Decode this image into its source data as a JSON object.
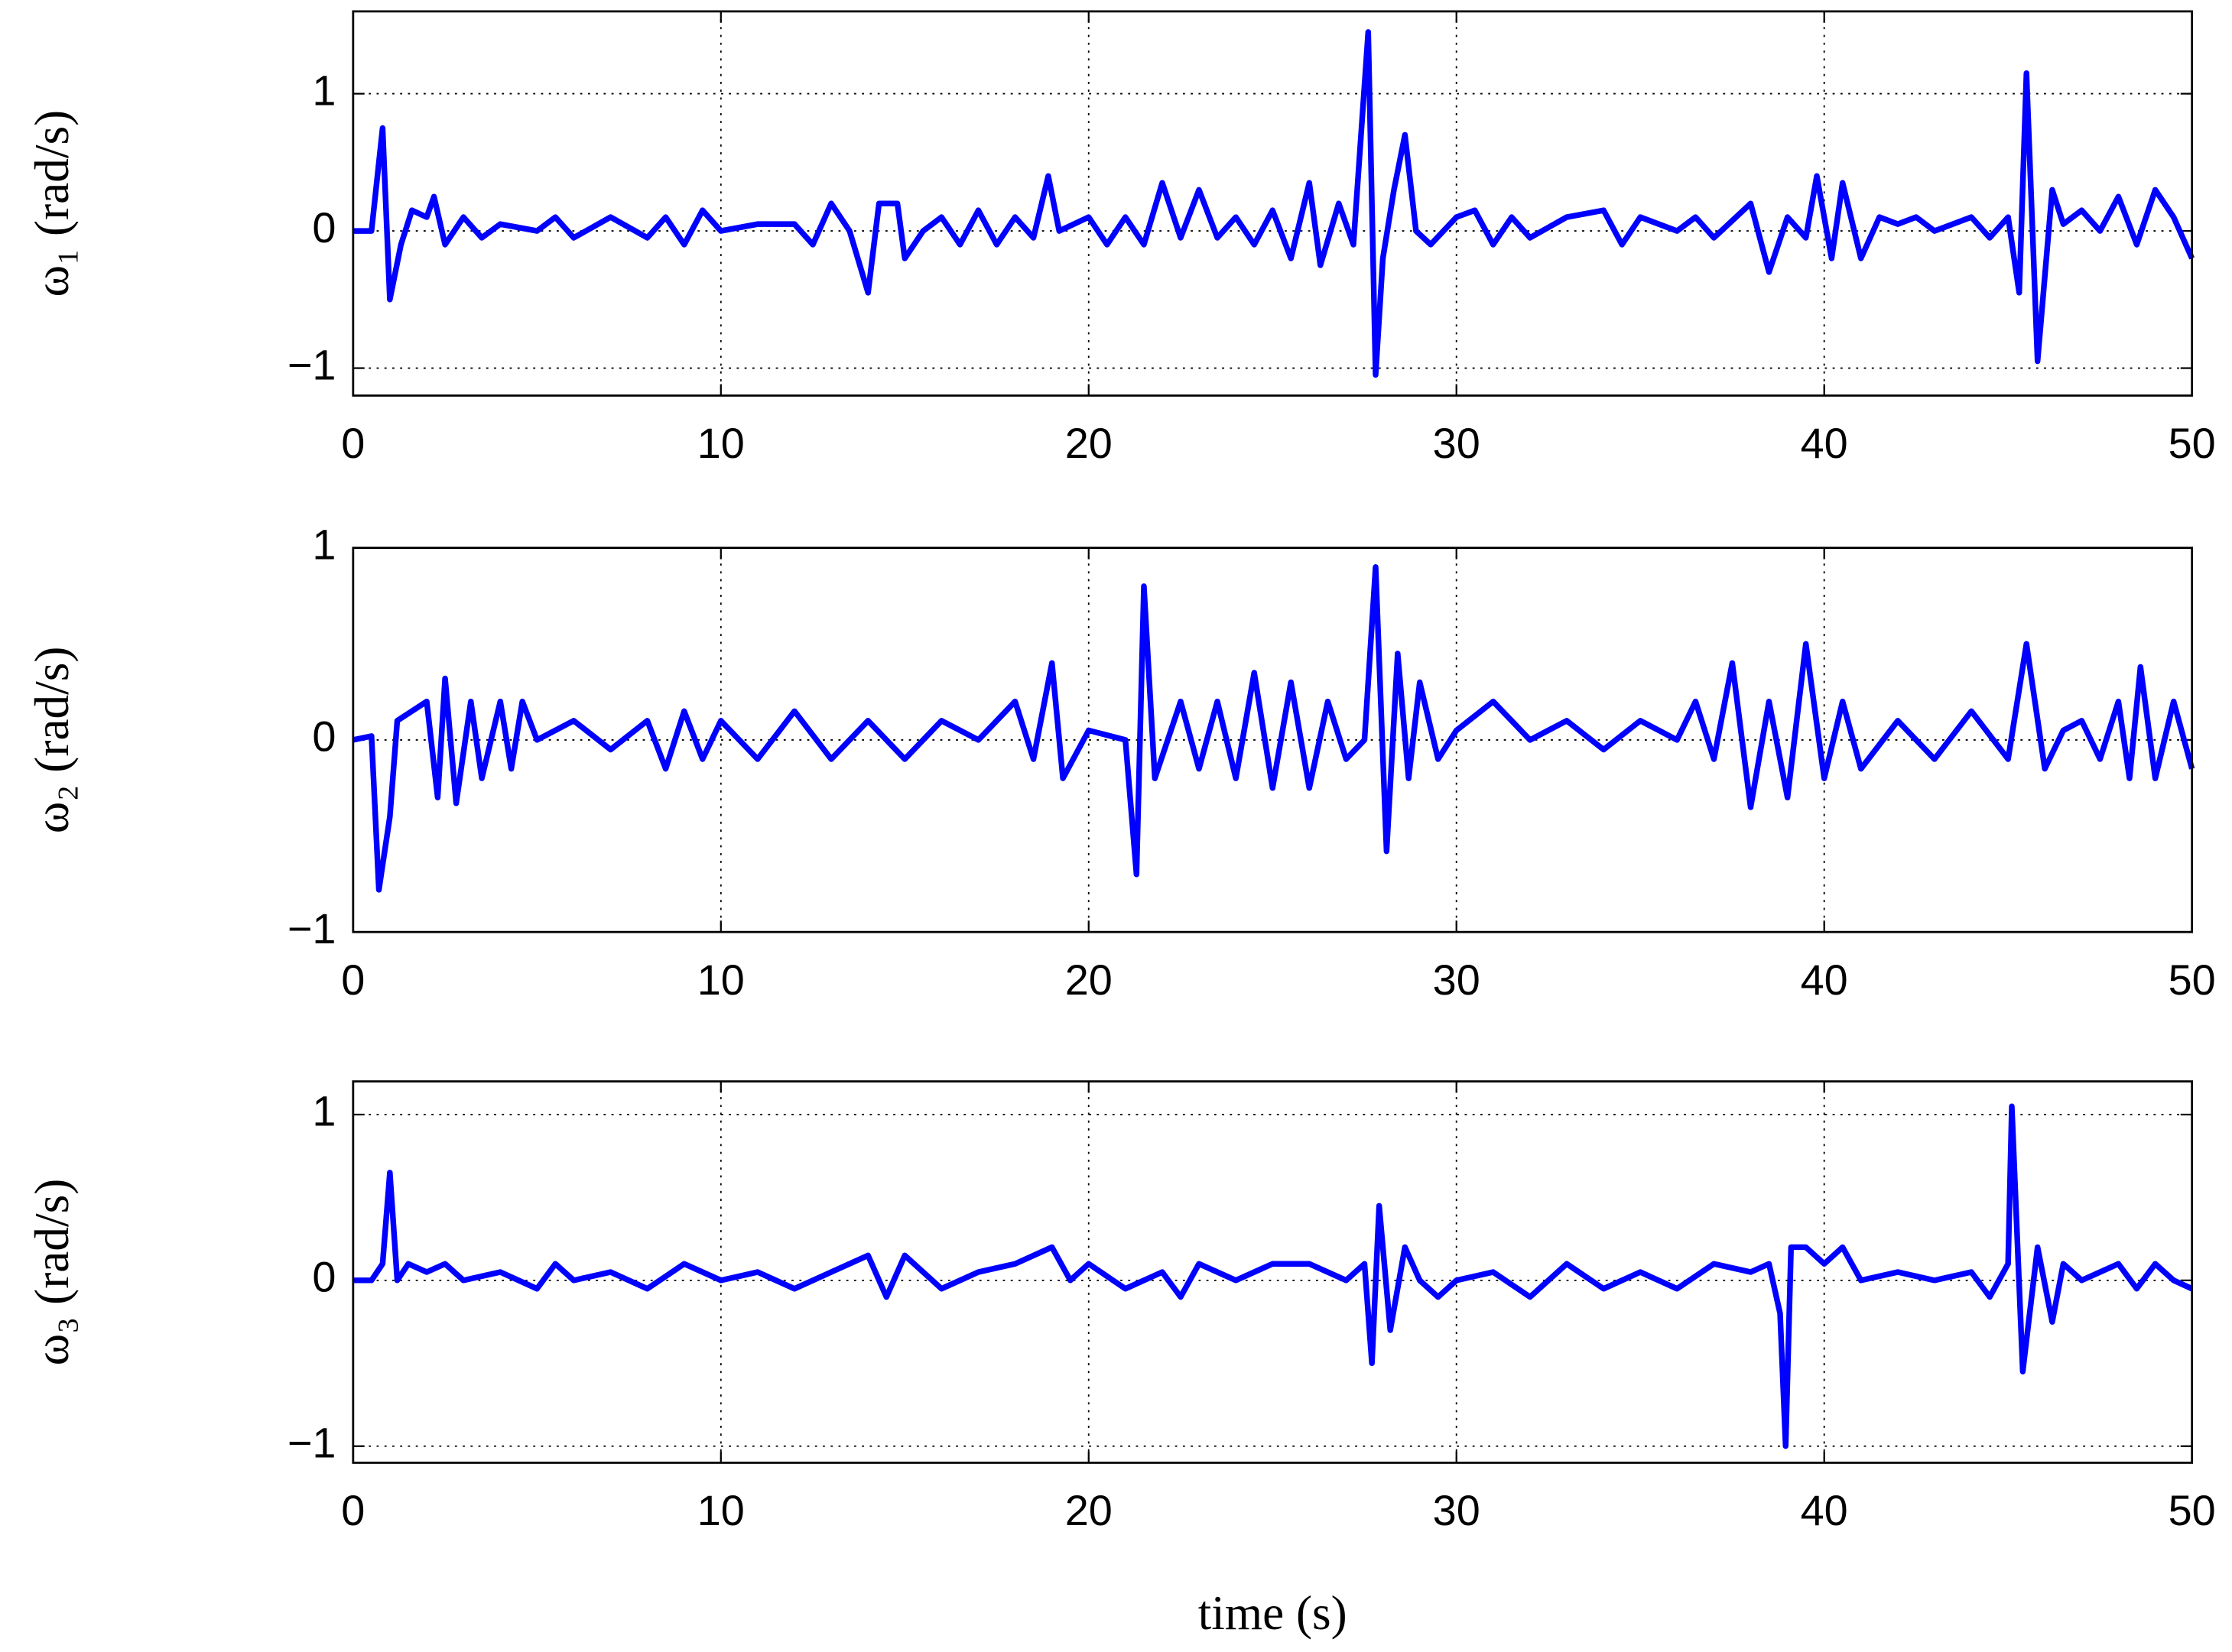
{
  "chart_data": [
    {
      "type": "line",
      "ylabel": "ω₁ (rad/s)",
      "xlim": [
        0,
        50
      ],
      "xticks": [
        0,
        10,
        20,
        30,
        40,
        50
      ],
      "ylim": [
        -1.2,
        1.6
      ],
      "yticks": [
        {
          "value": -1,
          "label": "−1"
        },
        0,
        1
      ],
      "grid": true,
      "x": [
        0,
        0.5,
        0.8,
        1.0,
        1.3,
        1.6,
        2.0,
        2.2,
        2.5,
        3,
        3.5,
        4,
        5,
        5.5,
        6,
        7,
        8,
        8.5,
        9,
        9.5,
        10,
        11,
        12,
        12.5,
        13,
        13.5,
        14,
        14.3,
        14.8,
        15,
        15.5,
        16,
        16.5,
        17,
        17.5,
        18,
        18.5,
        18.9,
        19.2,
        20,
        20.5,
        21,
        21.5,
        22,
        22.5,
        23,
        23.5,
        24,
        24.5,
        25,
        25.5,
        26,
        26.3,
        26.8,
        27.2,
        27.6,
        27.8,
        28.0,
        28.3,
        28.6,
        28.9,
        29.3,
        30,
        30.5,
        31,
        31.5,
        32,
        33,
        34,
        34.5,
        35,
        36,
        36.5,
        37,
        38,
        38.5,
        39,
        39.5,
        39.8,
        40.2,
        40.5,
        41,
        41.5,
        42,
        42.5,
        43,
        43.5,
        44,
        44.5,
        45,
        45.3,
        45.5,
        45.8,
        46.2,
        46.5,
        47,
        47.5,
        48,
        48.5,
        49,
        49.5,
        50
      ],
      "series": [
        {
          "name": "ω₁",
          "color": "#0000ff",
          "values": [
            0,
            0.0,
            0.75,
            -0.5,
            -0.1,
            0.15,
            0.1,
            0.25,
            -0.1,
            0.1,
            -0.05,
            0.05,
            0.0,
            0.1,
            -0.05,
            0.1,
            -0.05,
            0.1,
            -0.1,
            0.15,
            0.0,
            0.05,
            0.05,
            -0.1,
            0.2,
            0.0,
            -0.45,
            0.2,
            0.2,
            -0.2,
            0.0,
            0.1,
            -0.1,
            0.15,
            -0.1,
            0.1,
            -0.05,
            0.4,
            0.0,
            0.1,
            -0.1,
            0.1,
            -0.1,
            0.35,
            -0.05,
            0.3,
            -0.05,
            0.1,
            -0.1,
            0.15,
            -0.2,
            0.35,
            -0.25,
            0.2,
            -0.1,
            1.45,
            -1.05,
            -0.2,
            0.3,
            0.7,
            0.0,
            -0.1,
            0.1,
            0.15,
            -0.1,
            0.1,
            -0.05,
            0.1,
            0.15,
            -0.1,
            0.1,
            0.0,
            0.1,
            -0.05,
            0.2,
            -0.3,
            0.1,
            -0.05,
            0.4,
            -0.2,
            0.35,
            -0.2,
            0.1,
            0.05,
            0.1,
            0.0,
            0.05,
            0.1,
            -0.05,
            0.1,
            -0.45,
            1.15,
            -0.95,
            0.3,
            0.05,
            0.15,
            0.0,
            0.25,
            -0.1,
            0.3,
            0.1,
            -0.2
          ]
        }
      ]
    },
    {
      "type": "line",
      "ylabel": "ω₂ (rad/s)",
      "xlim": [
        0,
        50
      ],
      "xticks": [
        0,
        10,
        20,
        30,
        40,
        50
      ],
      "ylim": [
        -1,
        1
      ],
      "yticks": [
        {
          "value": -1,
          "label": "−1"
        },
        0,
        1
      ],
      "grid": true,
      "x": [
        0,
        0.5,
        0.7,
        1.0,
        1.2,
        1.6,
        2.0,
        2.3,
        2.5,
        2.8,
        3.2,
        3.5,
        4,
        4.3,
        4.6,
        5,
        6,
        7,
        8,
        8.5,
        9,
        9.5,
        10,
        11,
        12,
        13,
        14,
        15,
        16,
        17,
        18,
        18.5,
        19,
        19.3,
        20,
        21,
        21.3,
        21.5,
        21.8,
        22.5,
        23,
        23.5,
        24,
        24.5,
        25,
        25.5,
        26,
        26.5,
        27,
        27.5,
        27.8,
        28.1,
        28.4,
        28.7,
        29,
        29.5,
        30,
        31,
        32,
        33,
        34,
        35,
        36,
        36.5,
        37,
        37.5,
        38,
        38.5,
        39,
        39.5,
        40,
        40.5,
        41,
        42,
        43,
        44,
        45,
        45.5,
        46,
        46.5,
        47,
        47.5,
        48,
        48.3,
        48.6,
        49,
        49.5,
        50
      ],
      "series": [
        {
          "name": "ω₂",
          "color": "#0000ff",
          "values": [
            0,
            0.02,
            -0.78,
            -0.4,
            0.1,
            0.15,
            0.2,
            -0.3,
            0.32,
            -0.33,
            0.2,
            -0.2,
            0.2,
            -0.15,
            0.2,
            0.0,
            0.1,
            -0.05,
            0.1,
            -0.15,
            0.15,
            -0.1,
            0.1,
            -0.1,
            0.15,
            -0.1,
            0.1,
            -0.1,
            0.1,
            0.0,
            0.2,
            -0.1,
            0.4,
            -0.2,
            0.05,
            0.0,
            -0.7,
            0.8,
            -0.2,
            0.2,
            -0.15,
            0.2,
            -0.2,
            0.35,
            -0.25,
            0.3,
            -0.25,
            0.2,
            -0.1,
            0.0,
            0.9,
            -0.58,
            0.45,
            -0.2,
            0.3,
            -0.1,
            0.05,
            0.2,
            0.0,
            0.1,
            -0.05,
            0.1,
            0.0,
            0.2,
            -0.1,
            0.4,
            -0.35,
            0.2,
            -0.3,
            0.5,
            -0.2,
            0.2,
            -0.15,
            0.1,
            -0.1,
            0.15,
            -0.1,
            0.5,
            -0.15,
            0.05,
            0.1,
            -0.1,
            0.2,
            -0.2,
            0.38,
            -0.2,
            0.2,
            -0.15
          ]
        }
      ]
    },
    {
      "type": "line",
      "ylabel": "ω₃ (rad/s)",
      "xlabel": "time (s)",
      "xlim": [
        0,
        50
      ],
      "xticks": [
        0,
        10,
        20,
        30,
        40,
        50
      ],
      "ylim": [
        -1.1,
        1.2
      ],
      "yticks": [
        {
          "value": -1,
          "label": "−1"
        },
        0,
        1
      ],
      "grid": true,
      "x": [
        0,
        0.5,
        0.8,
        1.0,
        1.2,
        1.5,
        2,
        2.5,
        3,
        4,
        5,
        5.5,
        6,
        7,
        8,
        9,
        10,
        11,
        12,
        13,
        14,
        14.5,
        15,
        16,
        17,
        18,
        19,
        19.5,
        20,
        21,
        22,
        22.5,
        23,
        24,
        25,
        26,
        27,
        27.5,
        27.7,
        27.9,
        28.2,
        28.6,
        29,
        29.5,
        30,
        31,
        32,
        33,
        34,
        35,
        36,
        37,
        38,
        38.5,
        38.8,
        38.95,
        39.1,
        39.5,
        40,
        40.5,
        41,
        42,
        43,
        44,
        44.5,
        45,
        45.1,
        45.4,
        45.8,
        46.2,
        46.5,
        47,
        48,
        48.5,
        49,
        49.5,
        50
      ],
      "series": [
        {
          "name": "ω₃",
          "color": "#0000ff",
          "values": [
            0,
            0.0,
            0.1,
            0.65,
            0.0,
            0.1,
            0.05,
            0.1,
            0.0,
            0.05,
            -0.05,
            0.1,
            0.0,
            0.05,
            -0.05,
            0.1,
            0.0,
            0.05,
            -0.05,
            0.05,
            0.15,
            -0.1,
            0.15,
            -0.05,
            0.05,
            0.1,
            0.2,
            0.0,
            0.1,
            -0.05,
            0.05,
            -0.1,
            0.1,
            0.0,
            0.1,
            0.1,
            0.0,
            0.1,
            -0.5,
            0.45,
            -0.3,
            0.2,
            0.0,
            -0.1,
            0.0,
            0.05,
            -0.1,
            0.1,
            -0.05,
            0.05,
            -0.05,
            0.1,
            0.05,
            0.1,
            -0.2,
            -1.0,
            0.2,
            0.2,
            0.1,
            0.2,
            0.0,
            0.05,
            0.0,
            0.05,
            -0.1,
            0.1,
            1.05,
            -0.55,
            0.2,
            -0.25,
            0.1,
            0.0,
            0.1,
            -0.05,
            0.1,
            0.0,
            -0.05
          ]
        }
      ]
    }
  ]
}
